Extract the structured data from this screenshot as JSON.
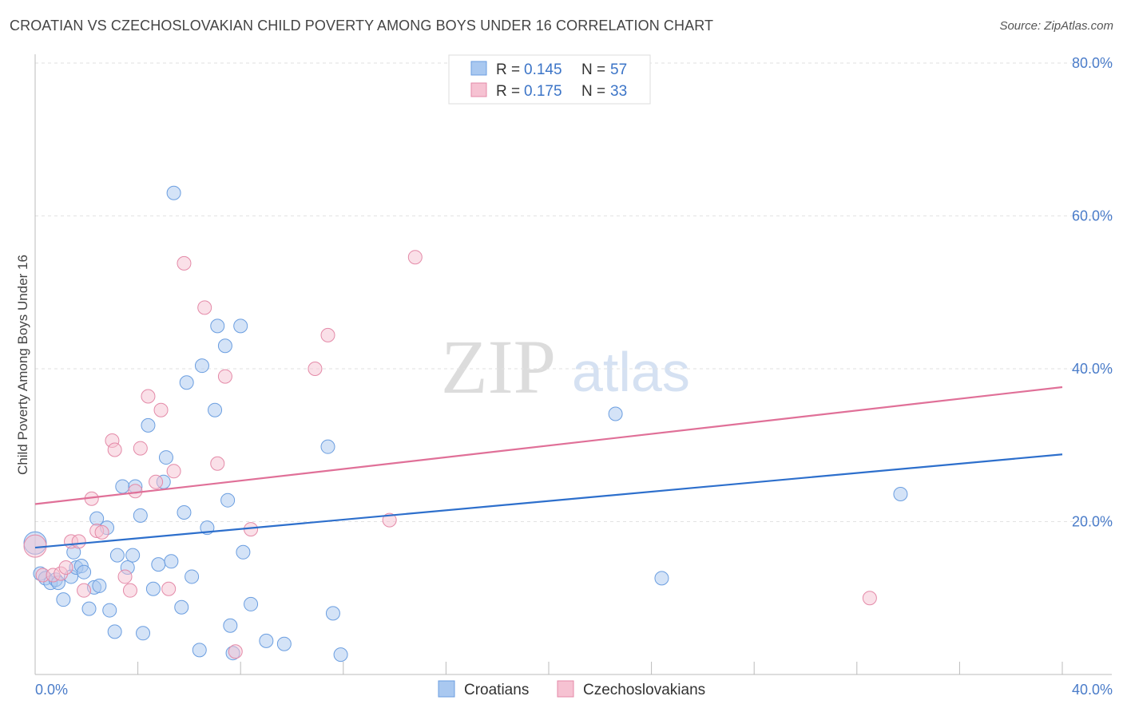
{
  "header": {
    "title": "CROATIAN VS CZECHOSLOVAKIAN CHILD POVERTY AMONG BOYS UNDER 16 CORRELATION CHART",
    "source": "Source: ZipAtlas.com"
  },
  "watermark": {
    "zip": "ZIP",
    "atlas": "atlas"
  },
  "legend": {
    "rows": [
      {
        "r_label": "R = ",
        "r_value": "0.145",
        "n_label": "N = ",
        "n_value": "57",
        "color": "#a9c8f0"
      },
      {
        "r_label": "R = ",
        "r_value": "0.175",
        "n_label": "N = ",
        "n_value": "33",
        "color": "#f6b8cb"
      }
    ]
  },
  "colors": {
    "croatians_fill": "#a9c8f0",
    "croatians_stroke": "#6b9ee0",
    "croatians_line": "#2d6fcc",
    "czech_fill": "#f6c2d2",
    "czech_stroke": "#e48aa8",
    "czech_line": "#e07098",
    "grid": "#e2e2e2",
    "tick_text": "#4a7cc9"
  },
  "chart_data": {
    "type": "scatter",
    "title": "CROATIAN VS CZECHOSLOVAKIAN CHILD POVERTY AMONG BOYS UNDER 16 CORRELATION CHART",
    "xlabel": "",
    "ylabel": "Child Poverty Among Boys Under 16",
    "xlim": [
      0,
      40
    ],
    "ylim": [
      0,
      80
    ],
    "x_tick_labels": [
      "0.0%",
      "40.0%"
    ],
    "y_tick_labels": [
      "20.0%",
      "40.0%",
      "60.0%",
      "80.0%"
    ],
    "y_ticks": [
      20,
      40,
      60,
      80
    ],
    "grid": true,
    "legend_position": "top-center",
    "series": [
      {
        "name": "Croatians",
        "r": 0.145,
        "n": 57,
        "trend": [
          [
            0,
            16.6
          ],
          [
            40,
            28.8
          ]
        ],
        "points": [
          [
            0.0,
            17.2
          ],
          [
            0.2,
            13.2
          ],
          [
            0.4,
            12.6
          ],
          [
            0.6,
            12.0
          ],
          [
            0.8,
            12.4
          ],
          [
            0.9,
            12.0
          ],
          [
            1.1,
            9.8
          ],
          [
            1.4,
            12.8
          ],
          [
            1.5,
            16.0
          ],
          [
            1.6,
            14.0
          ],
          [
            1.8,
            14.2
          ],
          [
            1.9,
            13.4
          ],
          [
            2.1,
            8.6
          ],
          [
            2.3,
            11.4
          ],
          [
            2.4,
            20.4
          ],
          [
            2.5,
            11.6
          ],
          [
            2.8,
            19.2
          ],
          [
            2.9,
            8.4
          ],
          [
            3.1,
            5.6
          ],
          [
            3.2,
            15.6
          ],
          [
            3.4,
            24.6
          ],
          [
            3.6,
            14.0
          ],
          [
            3.8,
            15.6
          ],
          [
            3.9,
            24.6
          ],
          [
            4.1,
            20.8
          ],
          [
            4.2,
            5.4
          ],
          [
            4.4,
            32.6
          ],
          [
            4.6,
            11.2
          ],
          [
            4.8,
            14.4
          ],
          [
            5.0,
            25.2
          ],
          [
            5.1,
            28.4
          ],
          [
            5.3,
            14.8
          ],
          [
            5.4,
            63.0
          ],
          [
            5.7,
            8.8
          ],
          [
            5.8,
            21.2
          ],
          [
            5.9,
            38.2
          ],
          [
            6.1,
            12.8
          ],
          [
            6.4,
            3.2
          ],
          [
            6.5,
            40.4
          ],
          [
            6.7,
            19.2
          ],
          [
            7.0,
            34.6
          ],
          [
            7.1,
            45.6
          ],
          [
            7.4,
            43.0
          ],
          [
            7.5,
            22.8
          ],
          [
            7.6,
            6.4
          ],
          [
            7.7,
            2.8
          ],
          [
            8.0,
            45.6
          ],
          [
            8.1,
            16.0
          ],
          [
            8.4,
            9.2
          ],
          [
            9.0,
            4.4
          ],
          [
            9.7,
            4.0
          ],
          [
            11.4,
            29.8
          ],
          [
            11.6,
            8.0
          ],
          [
            11.9,
            2.6
          ],
          [
            22.6,
            34.1
          ],
          [
            24.4,
            12.6
          ],
          [
            33.7,
            23.6
          ]
        ]
      },
      {
        "name": "Czechoslovakians",
        "r": 0.175,
        "n": 33,
        "trend": [
          [
            0,
            22.3
          ],
          [
            40,
            37.6
          ]
        ],
        "points": [
          [
            0.0,
            16.8
          ],
          [
            0.3,
            13.0
          ],
          [
            0.7,
            13.0
          ],
          [
            1.0,
            13.2
          ],
          [
            1.2,
            14.0
          ],
          [
            1.4,
            17.4
          ],
          [
            1.7,
            17.4
          ],
          [
            1.9,
            11.0
          ],
          [
            2.2,
            23.0
          ],
          [
            2.4,
            18.8
          ],
          [
            2.6,
            18.6
          ],
          [
            3.0,
            30.6
          ],
          [
            3.1,
            29.4
          ],
          [
            3.5,
            12.8
          ],
          [
            3.7,
            11.0
          ],
          [
            3.9,
            24.0
          ],
          [
            4.1,
            29.6
          ],
          [
            4.4,
            36.4
          ],
          [
            4.7,
            25.2
          ],
          [
            4.9,
            34.6
          ],
          [
            5.2,
            11.2
          ],
          [
            5.4,
            26.6
          ],
          [
            5.8,
            53.8
          ],
          [
            6.6,
            48.0
          ],
          [
            7.1,
            27.6
          ],
          [
            7.4,
            39.0
          ],
          [
            7.8,
            3.0
          ],
          [
            8.4,
            19.0
          ],
          [
            10.9,
            40.0
          ],
          [
            11.4,
            44.4
          ],
          [
            13.8,
            20.2
          ],
          [
            14.8,
            54.6
          ],
          [
            32.5,
            10.0
          ]
        ]
      }
    ]
  },
  "bottom_legend": {
    "items": [
      "Croatians",
      "Czechoslovakians"
    ]
  }
}
